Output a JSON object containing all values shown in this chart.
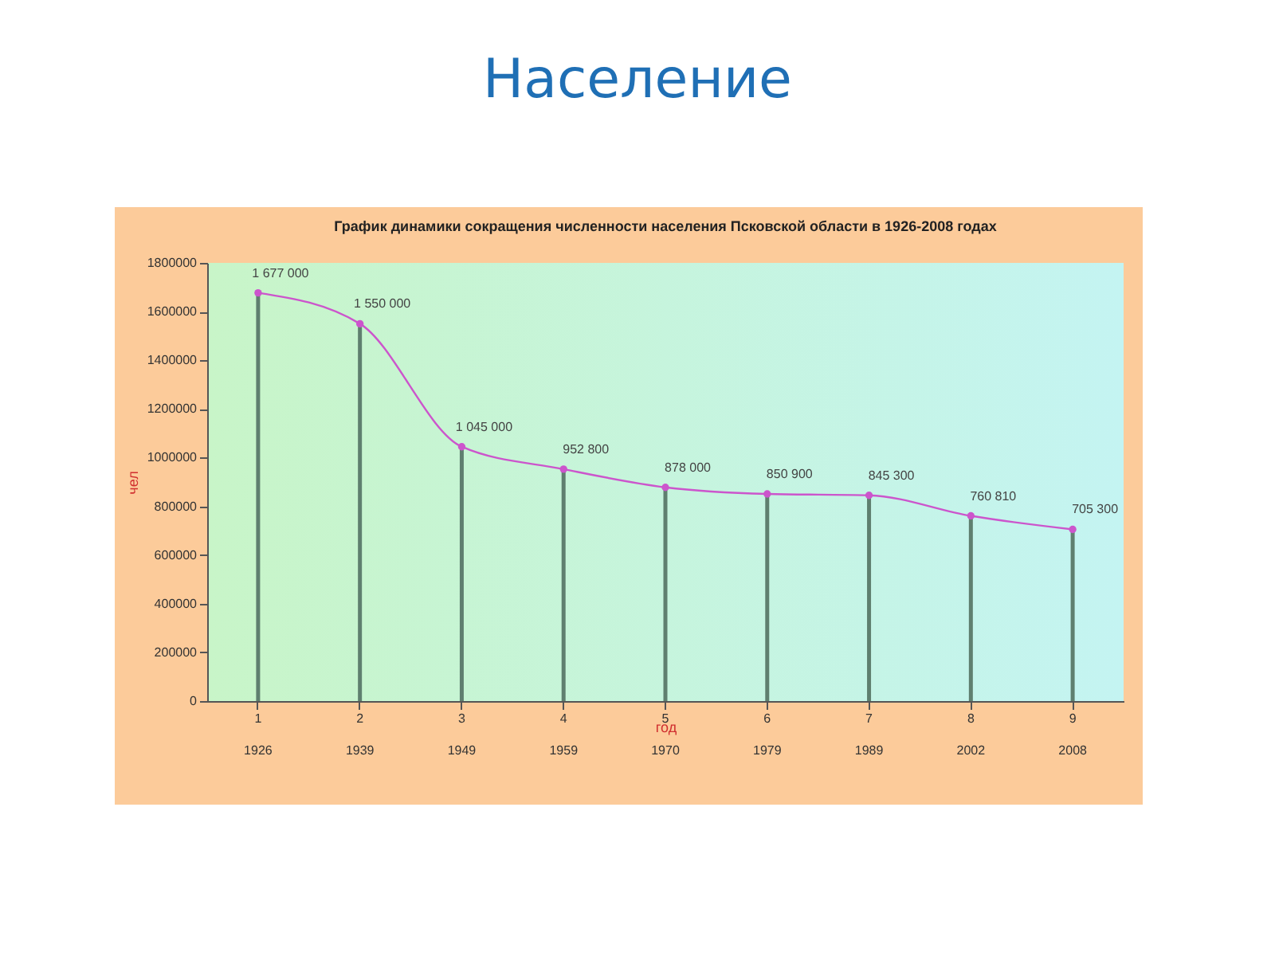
{
  "chart_data": {
    "type": "line",
    "title": "Население",
    "subtitle": "График динамики сокращения численности населения Псковской области в 1926-2008 годах",
    "xlabel": "год",
    "ylabel": "чел",
    "categories": [
      "1\n1926",
      "2\n1939",
      "3\n1949",
      "4\n1959",
      "5\n1970",
      "6\n1979",
      "7\n1989",
      "8\n2002",
      "9\n2008"
    ],
    "series": [
      {
        "type": "bar",
        "color": "#5f7f6f",
        "values": [
          1677000,
          1550000,
          1045000,
          952800,
          878000,
          850900,
          845300,
          760810,
          705300
        ]
      },
      {
        "color": "#cc55cc",
        "values": [
          1677000,
          1550000,
          1045000,
          952800,
          878000,
          850900,
          845300,
          760810,
          705300
        ],
        "value_labels": [
          "1 677 000",
          "1 550 000",
          "1 045 000",
          "952 800",
          "878 000",
          "850 900",
          "845 300",
          "760 810",
          "705 300"
        ]
      }
    ],
    "ylim": [
      0,
      1800000
    ],
    "yticks": [
      0,
      200000,
      400000,
      600000,
      800000,
      1000000,
      1200000,
      1400000,
      1600000,
      1800000
    ],
    "marker": "circle",
    "grid": false
  }
}
